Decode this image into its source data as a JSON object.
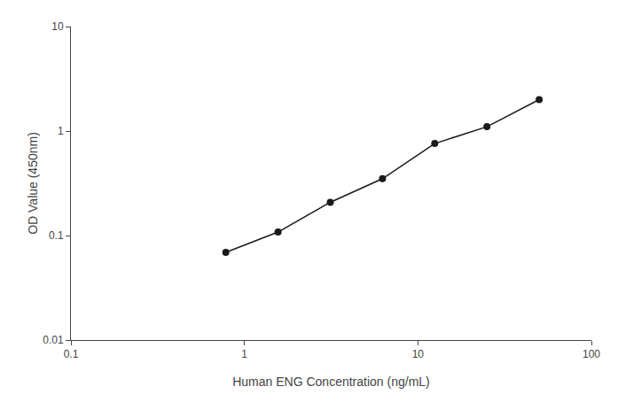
{
  "chart_data": {
    "type": "line",
    "x": [
      0.781,
      1.563,
      3.125,
      6.25,
      12.5,
      25,
      50
    ],
    "values": [
      0.069,
      0.108,
      0.208,
      0.35,
      0.76,
      1.1,
      2.0
    ],
    "xlabel": "Human ENG Concentration (ng/mL)",
    "ylabel": "OD Value (450nm)",
    "xlim": [
      0.1,
      100
    ],
    "ylim": [
      0.01,
      10
    ],
    "xticks": [
      0.1,
      1,
      10,
      100
    ],
    "yticks": [
      0.01,
      0.1,
      1,
      10
    ],
    "log": true,
    "grid": false,
    "color": "#1a1a1a",
    "marker": "circle"
  }
}
